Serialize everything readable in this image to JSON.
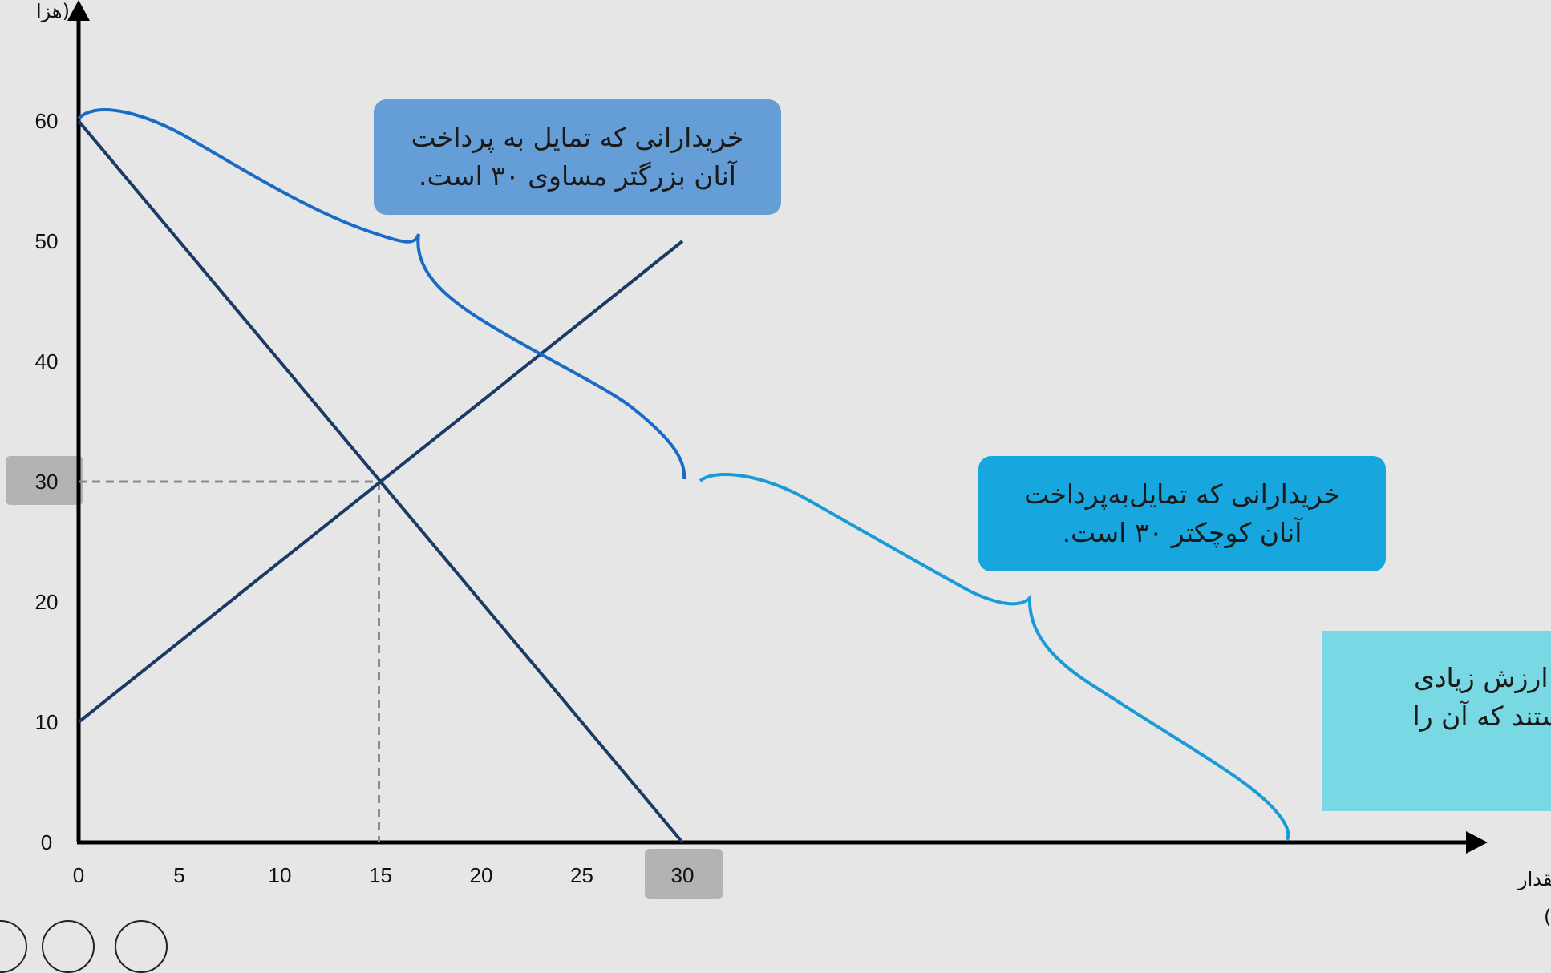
{
  "chart_data": {
    "type": "line",
    "xlabel": [
      "مقدار",
      "(هزارعدد)"
    ],
    "ylabel": "(هزا",
    "xlim": [
      0,
      35
    ],
    "ylim": [
      0,
      60
    ],
    "x_ticks": [
      0,
      5,
      10,
      15,
      20,
      25,
      30
    ],
    "y_ticks": [
      0,
      10,
      20,
      30,
      40,
      50,
      60
    ],
    "series": [
      {
        "points": [
          [
            0,
            60
          ],
          [
            30,
            0
          ]
        ]
      },
      {
        "points": [
          [
            0,
            10
          ],
          [
            30,
            50
          ]
        ]
      }
    ],
    "equilibrium": {
      "x": 15,
      "y": 30
    },
    "annotations": [
      {
        "lines": [
          "خریدارانی که تمایل به پرداخت",
          "آنان بزرگتر مساوی ۳۰ است."
        ]
      },
      {
        "lines": [
          "خریدارانی که تمایل‌به‌پرداخت",
          "آنان کوچکتر ۳۰ است."
        ]
      },
      {
        "lines": [
          "الا ارزش زیادی",
          "هستند که آن را"
        ]
      }
    ]
  },
  "colors": {
    "background": "#e6e6e6",
    "axis": "#000000",
    "line": "#1b3a66",
    "dashed": "#8c8c8c",
    "highlight": "#b3b3b3",
    "callout_high": "#659ed6",
    "callout_low": "#18a6de",
    "callout_partial": "#78d8e3",
    "brace_high": "#1a6bc6",
    "brace_low": "#1a9ad6"
  },
  "icons": [
    "arrow-up-icon",
    "arrow-right-icon"
  ]
}
